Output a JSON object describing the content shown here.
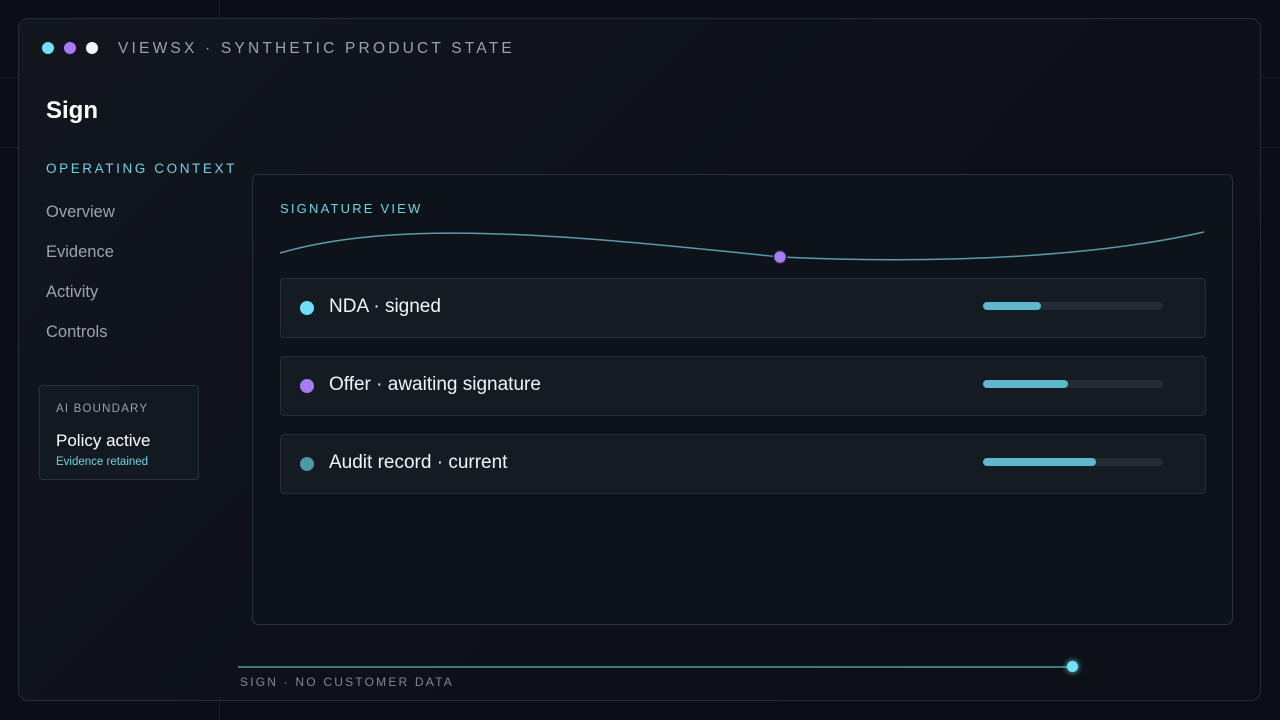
{
  "window": {
    "dot_colors": [
      "#6fdff5",
      "#a87af3",
      "#f2f4f6"
    ],
    "title": "VIEWSX · SYNTHETIC PRODUCT STATE"
  },
  "page": {
    "title": "Sign"
  },
  "sidebar": {
    "section_label": "OPERATING CONTEXT",
    "items": [
      {
        "label": "Overview"
      },
      {
        "label": "Evidence"
      },
      {
        "label": "Activity"
      },
      {
        "label": "Controls"
      }
    ]
  },
  "ai_boundary": {
    "label": "AI BOUNDARY",
    "status": "Policy active",
    "note": "Evidence retained"
  },
  "signature_view": {
    "label": "SIGNATURE VIEW",
    "accent": "#a87af3",
    "rows": [
      {
        "label": "NDA · signed",
        "dot_color": "#6fdff5",
        "progress": 0.32
      },
      {
        "label": "Offer · awaiting signature",
        "dot_color": "#a87af3",
        "progress": 0.47
      },
      {
        "label": "Audit record · current",
        "dot_color": "#4e97a6",
        "progress": 0.63
      }
    ]
  },
  "footer": {
    "text": "SIGN · NO CUSTOMER DATA",
    "progress": 0.99
  }
}
